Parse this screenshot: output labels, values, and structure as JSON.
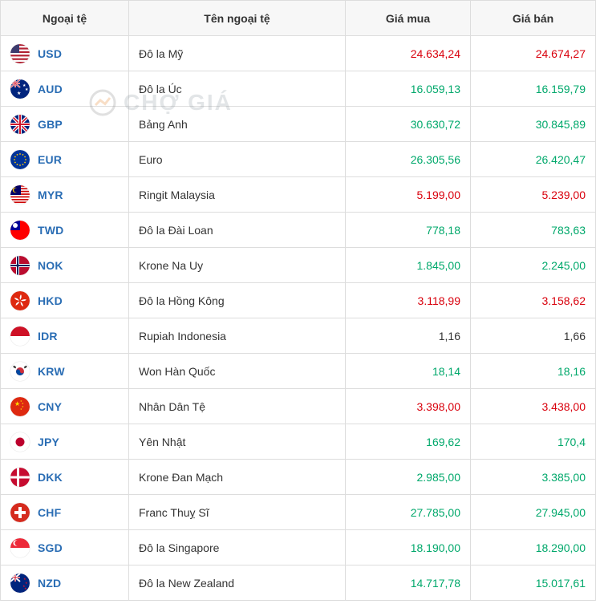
{
  "headers": {
    "code": "Ngoại tệ",
    "name": "Tên ngoại tệ",
    "buy": "Giá mua",
    "sell": "Giá bán"
  },
  "watermark": "CHỢ GIÁ",
  "colors": {
    "up": "#00a86b",
    "down": "#d9000c",
    "neutral": "#333333",
    "code_link": "#2a6db4"
  },
  "rows": [
    {
      "code": "USD",
      "name": "Đô la Mỹ",
      "buy": "24.634,24",
      "buy_dir": "down",
      "sell": "24.674,27",
      "sell_dir": "down",
      "flag": "us"
    },
    {
      "code": "AUD",
      "name": "Đô la Úc",
      "buy": "16.059,13",
      "buy_dir": "up",
      "sell": "16.159,79",
      "sell_dir": "up",
      "flag": "au"
    },
    {
      "code": "GBP",
      "name": "Bảng Anh",
      "buy": "30.630,72",
      "buy_dir": "up",
      "sell": "30.845,89",
      "sell_dir": "up",
      "flag": "gb"
    },
    {
      "code": "EUR",
      "name": "Euro",
      "buy": "26.305,56",
      "buy_dir": "up",
      "sell": "26.420,47",
      "sell_dir": "up",
      "flag": "eu"
    },
    {
      "code": "MYR",
      "name": "Ringit Malaysia",
      "buy": "5.199,00",
      "buy_dir": "down",
      "sell": "5.239,00",
      "sell_dir": "down",
      "flag": "my"
    },
    {
      "code": "TWD",
      "name": "Đô la Đài Loan",
      "buy": "778,18",
      "buy_dir": "up",
      "sell": "783,63",
      "sell_dir": "up",
      "flag": "tw"
    },
    {
      "code": "NOK",
      "name": "Krone Na Uy",
      "buy": "1.845,00",
      "buy_dir": "up",
      "sell": "2.245,00",
      "sell_dir": "up",
      "flag": "no"
    },
    {
      "code": "HKD",
      "name": "Đô la Hồng Kông",
      "buy": "3.118,99",
      "buy_dir": "down",
      "sell": "3.158,62",
      "sell_dir": "down",
      "flag": "hk"
    },
    {
      "code": "IDR",
      "name": "Rupiah Indonesia",
      "buy": "1,16",
      "buy_dir": "neutral",
      "sell": "1,66",
      "sell_dir": "neutral",
      "flag": "id"
    },
    {
      "code": "KRW",
      "name": "Won Hàn Quốc",
      "buy": "18,14",
      "buy_dir": "up",
      "sell": "18,16",
      "sell_dir": "up",
      "flag": "kr"
    },
    {
      "code": "CNY",
      "name": "Nhân Dân Tệ",
      "buy": "3.398,00",
      "buy_dir": "down",
      "sell": "3.438,00",
      "sell_dir": "down",
      "flag": "cn"
    },
    {
      "code": "JPY",
      "name": "Yên Nhật",
      "buy": "169,62",
      "buy_dir": "up",
      "sell": "170,4",
      "sell_dir": "up",
      "flag": "jp"
    },
    {
      "code": "DKK",
      "name": "Krone Đan Mạch",
      "buy": "2.985,00",
      "buy_dir": "up",
      "sell": "3.385,00",
      "sell_dir": "up",
      "flag": "dk"
    },
    {
      "code": "CHF",
      "name": "Franc Thuỵ Sĩ",
      "buy": "27.785,00",
      "buy_dir": "up",
      "sell": "27.945,00",
      "sell_dir": "up",
      "flag": "ch"
    },
    {
      "code": "SGD",
      "name": "Đô la Singapore",
      "buy": "18.190,00",
      "buy_dir": "up",
      "sell": "18.290,00",
      "sell_dir": "up",
      "flag": "sg"
    },
    {
      "code": "NZD",
      "name": "Đô la New Zealand",
      "buy": "14.717,78",
      "buy_dir": "up",
      "sell": "15.017,61",
      "sell_dir": "up",
      "flag": "nz"
    }
  ]
}
